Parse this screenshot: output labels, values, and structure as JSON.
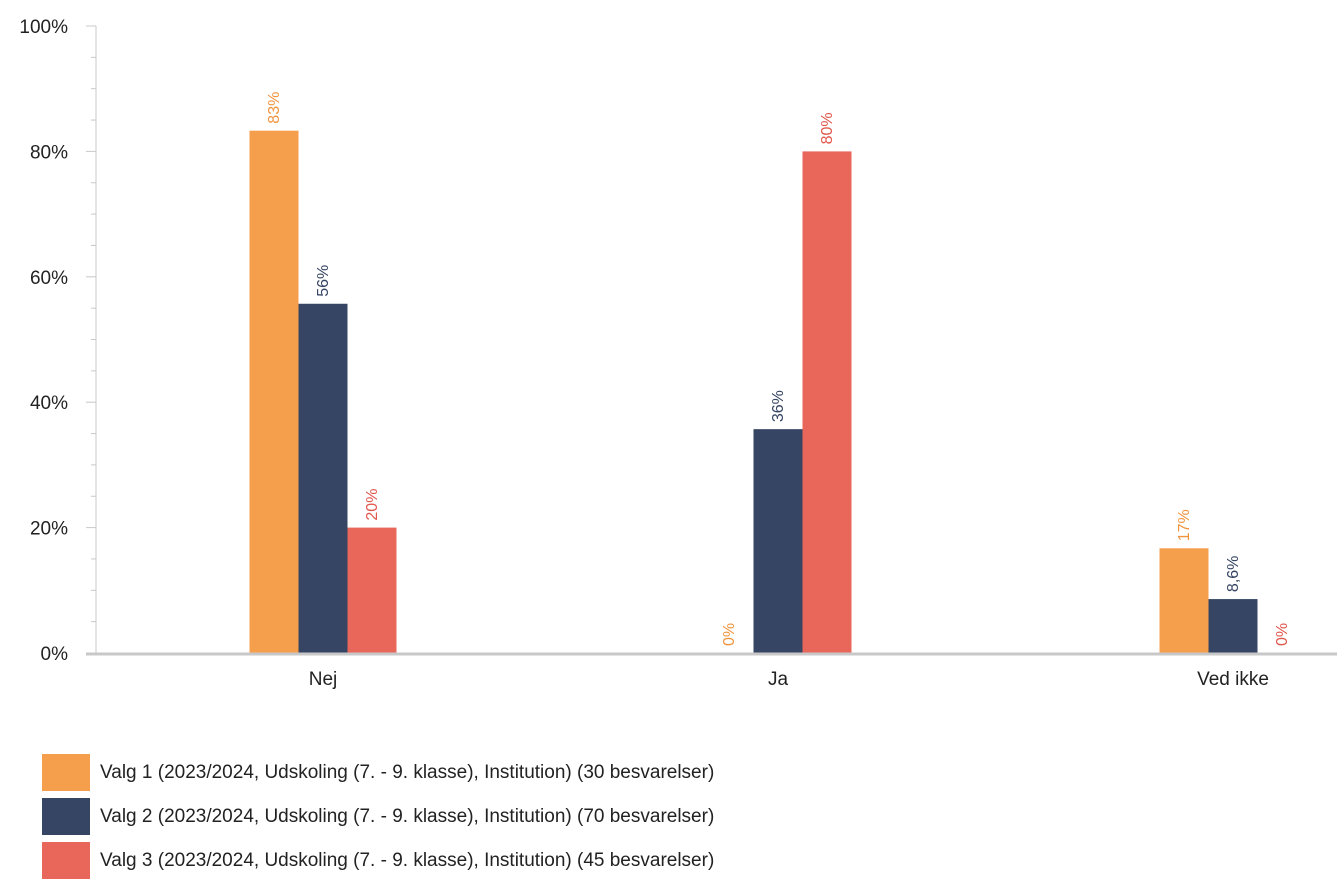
{
  "chart_data": {
    "type": "bar",
    "categories": [
      "Nej",
      "Ja",
      "Ved ikke"
    ],
    "ylim": [
      0,
      100
    ],
    "yticks": [
      0,
      20,
      40,
      60,
      80,
      100
    ],
    "ytick_labels": [
      "0%",
      "20%",
      "40%",
      "60%",
      "80%",
      "100%"
    ],
    "grid": false,
    "legend_position": "bottom-left",
    "series": [
      {
        "name": "Valg 1 (2023/2024, Udskoling (7. - 9. klasse), Institution) (30 besvarelser)",
        "color": "#f59e4c",
        "label_color": "#f0953f",
        "values": [
          83.3,
          0,
          16.7
        ],
        "labels": [
          "83%",
          "0%",
          "17%"
        ]
      },
      {
        "name": "Valg 2 (2023/2024, Udskoling (7. - 9. klasse), Institution) (70 besvarelser)",
        "color": "#364563",
        "label_color": "#364563",
        "values": [
          55.7,
          35.7,
          8.6
        ],
        "labels": [
          "56%",
          "36%",
          "8,6%"
        ]
      },
      {
        "name": "Valg 3 (2023/2024, Udskoling (7. - 9. klasse), Institution) (45 besvarelser)",
        "color": "#e8665a",
        "label_color": "#e0574d",
        "values": [
          20,
          80,
          0
        ],
        "labels": [
          "20%",
          "80%",
          "0%"
        ]
      }
    ]
  }
}
